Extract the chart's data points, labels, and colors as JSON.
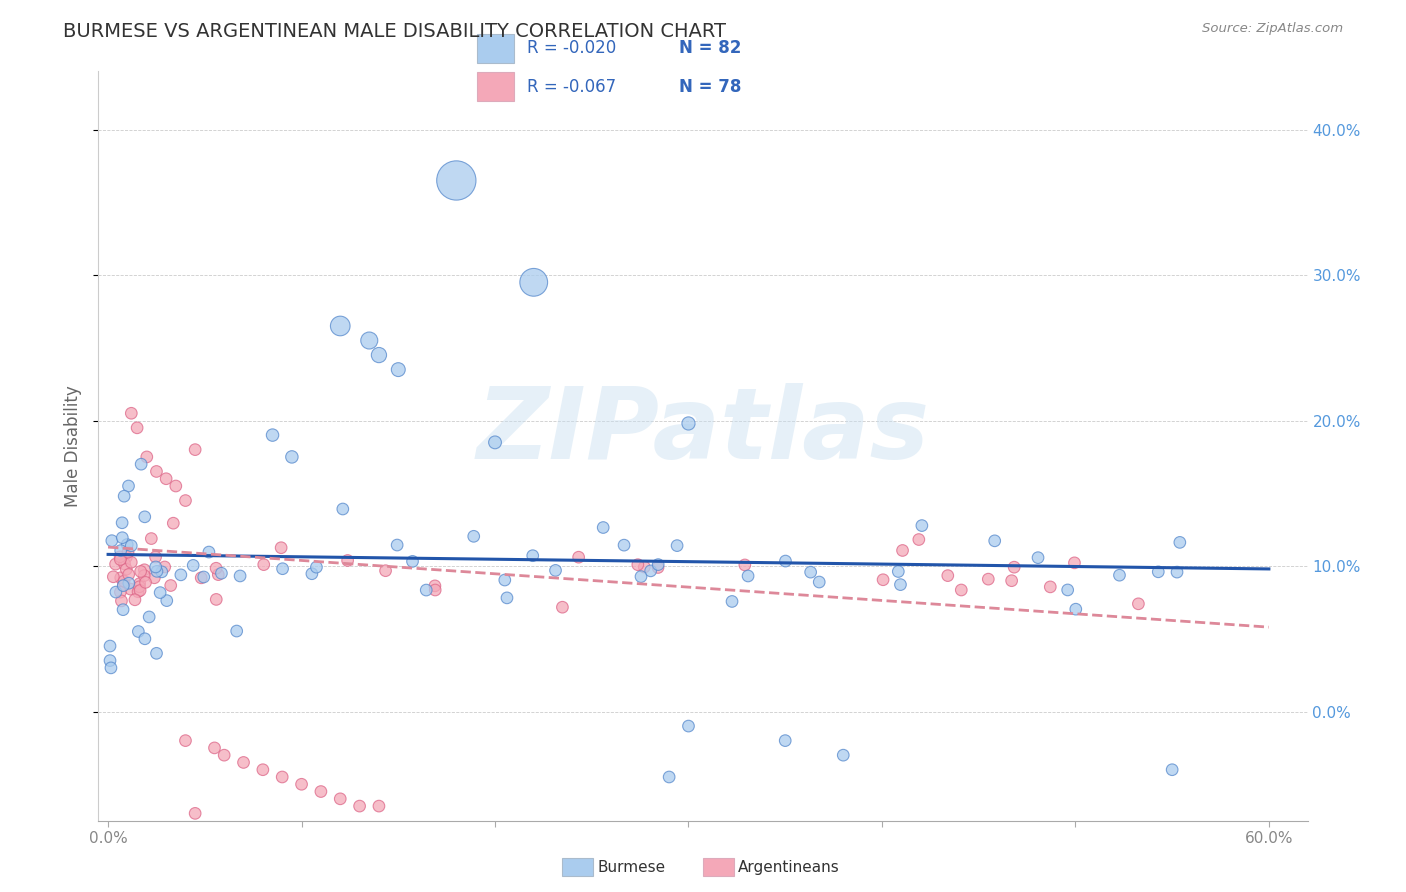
{
  "title": "BURMESE VS ARGENTINEAN MALE DISABILITY CORRELATION CHART",
  "source": "Source: ZipAtlas.com",
  "ylabel": "Male Disability",
  "xlim": [
    -0.005,
    0.62
  ],
  "ylim": [
    -0.075,
    0.44
  ],
  "yticks": [
    0.0,
    0.1,
    0.2,
    0.3,
    0.4
  ],
  "yticklabels": [
    "0.0%",
    "10.0%",
    "20.0%",
    "30.0%",
    "40.0%"
  ],
  "xticks": [
    0.0,
    0.1,
    0.2,
    0.3,
    0.4,
    0.5,
    0.6
  ],
  "xticklabels": [
    "0.0%",
    "",
    "",
    "",
    "",
    "",
    "60.0%"
  ],
  "burmese_R": -0.02,
  "burmese_N": 82,
  "argentinean_R": -0.067,
  "argentinean_N": 78,
  "burmese_color": "#aaccee",
  "argentinean_color": "#f4a8b8",
  "burmese_edge_color": "#5588cc",
  "argentinean_edge_color": "#dd6688",
  "burmese_line_color": "#2255aa",
  "argentinean_line_color": "#dd8899",
  "watermark": "ZIPatlas",
  "title_color": "#333333",
  "title_fontsize": 14,
  "source_color": "#888888",
  "tick_color_x": "#888888",
  "tick_color_y": "#5599dd",
  "legend_R1": "R = -0.020",
  "legend_N1": "N = 82",
  "legend_R2": "R = -0.067",
  "legend_N2": "N = 78"
}
